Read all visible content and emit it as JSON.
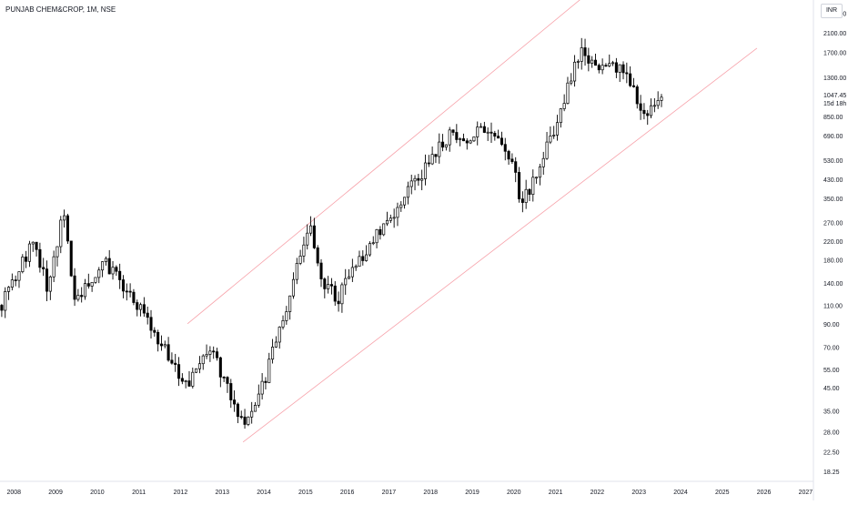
{
  "header": {
    "title": "PUNJAB CHEM&CROP, 1M, NSE",
    "currency": "INR"
  },
  "chart_data": {
    "type": "candlestick",
    "x_axis": {
      "labels": [
        "2008",
        "2009",
        "2010",
        "2011",
        "2012",
        "2013",
        "2014",
        "2015",
        "2016",
        "2017",
        "2018",
        "2019",
        "2020",
        "2021",
        "2022",
        "2023",
        "2024",
        "2025",
        "2026",
        "2027"
      ],
      "range": [
        "2007-09",
        "2027-03"
      ]
    },
    "y_axis": {
      "scale": "log",
      "ticks": [
        "2600.00",
        "2100.00",
        "1700.00",
        "1300.00",
        "850.00",
        "690.00",
        "530.00",
        "430.00",
        "350.00",
        "270.00",
        "220.00",
        "180.00",
        "140.00",
        "110.00",
        "90.00",
        "70.00",
        "55.00",
        "45.00",
        "35.00",
        "28.00",
        "22.50",
        "18.25"
      ],
      "range": [
        16.5,
        3000
      ]
    },
    "last_price": {
      "value": "1047.45",
      "countdown": "15d 18h"
    },
    "colors": {
      "up": "#ffffff",
      "down": "#000000",
      "wick": "#000000",
      "channel": "#f7a1a9"
    },
    "channel_lines": [
      {
        "name": "upper",
        "points": [
          [
            "2012-03",
            90
          ],
          [
            "2021-09",
            3100
          ]
        ]
      },
      {
        "name": "lower",
        "points": [
          [
            "2013-07",
            25
          ],
          [
            "2025-11",
            1780
          ]
        ]
      }
    ],
    "anchors": [
      {
        "date": "2007-09",
        "price": 110
      },
      {
        "date": "2008-06",
        "price": 220
      },
      {
        "date": "2008-10",
        "price": 135
      },
      {
        "date": "2009-03",
        "price": 300
      },
      {
        "date": "2009-06",
        "price": 120
      },
      {
        "date": "2010-03",
        "price": 175
      },
      {
        "date": "2011-03",
        "price": 95
      },
      {
        "date": "2012-02",
        "price": 45
      },
      {
        "date": "2012-09",
        "price": 70
      },
      {
        "date": "2013-07",
        "price": 30
      },
      {
        "date": "2014-01",
        "price": 50
      },
      {
        "date": "2015-02",
        "price": 270
      },
      {
        "date": "2015-05",
        "price": 140
      },
      {
        "date": "2015-10",
        "price": 120
      },
      {
        "date": "2016-06",
        "price": 200
      },
      {
        "date": "2018-06",
        "price": 700
      },
      {
        "date": "2018-12",
        "price": 650
      },
      {
        "date": "2019-03",
        "price": 740
      },
      {
        "date": "2019-11",
        "price": 560
      },
      {
        "date": "2020-03",
        "price": 330
      },
      {
        "date": "2020-08",
        "price": 500
      },
      {
        "date": "2021-03",
        "price": 1000
      },
      {
        "date": "2021-08",
        "price": 1900
      },
      {
        "date": "2021-11",
        "price": 1500
      },
      {
        "date": "2022-04",
        "price": 1550
      },
      {
        "date": "2022-09",
        "price": 1300
      },
      {
        "date": "2023-03",
        "price": 840
      },
      {
        "date": "2023-07",
        "price": 1047.45
      }
    ]
  }
}
